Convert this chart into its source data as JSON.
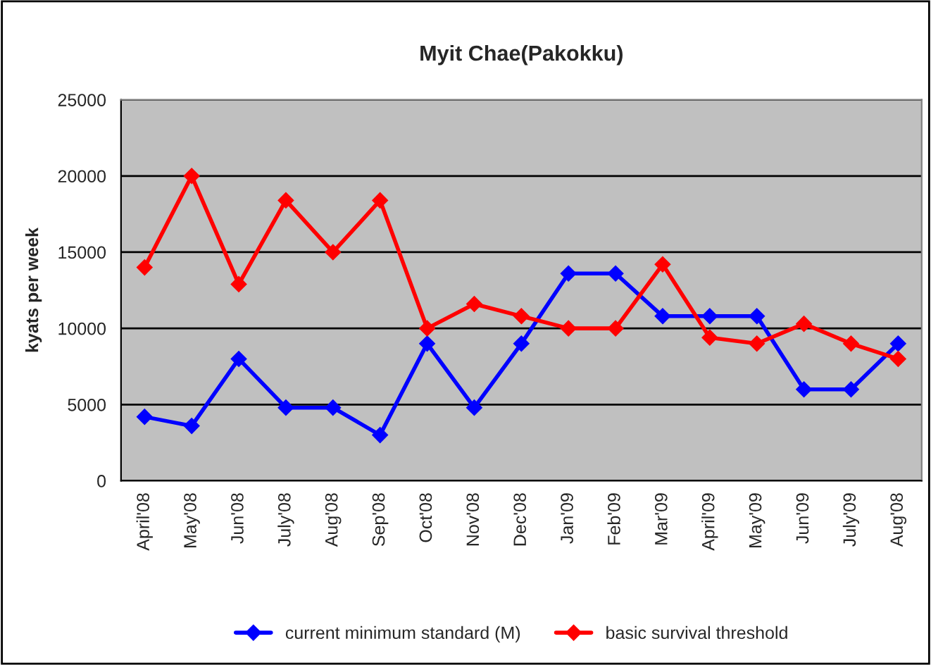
{
  "chart_data": {
    "type": "line",
    "title": "Myit Chae(Pakokku)",
    "ylabel": "kyats per week",
    "categories": [
      "April'08",
      "May'08",
      "Jun'08",
      "July'08",
      "Aug'08",
      "Sep'08",
      "Oct'08",
      "Nov'08",
      "Dec'08",
      "Jan'09",
      "Feb'09",
      "Mar'09",
      "April'09",
      "May'09",
      "Jun'09",
      "July'09",
      "Aug'08"
    ],
    "series": [
      {
        "name": "current minimum standard (M)",
        "color": "#0000ff",
        "values": [
          4200,
          3600,
          8000,
          4800,
          4800,
          3000,
          9000,
          4800,
          9000,
          13600,
          13600,
          10800,
          10800,
          10800,
          6000,
          6000,
          9000
        ]
      },
      {
        "name": "basic survival threshold",
        "color": "#ff0000",
        "values": [
          14000,
          20000,
          12900,
          18400,
          15000,
          18400,
          10000,
          11600,
          10800,
          10000,
          10000,
          14200,
          9400,
          9000,
          10300,
          9000,
          8000
        ]
      }
    ],
    "ylim": [
      0,
      25000
    ],
    "yticks": [
      0,
      5000,
      10000,
      15000,
      20000,
      25000
    ],
    "grid": "y",
    "legend": "bottom",
    "marker": "diamond",
    "line_style": "solid"
  }
}
